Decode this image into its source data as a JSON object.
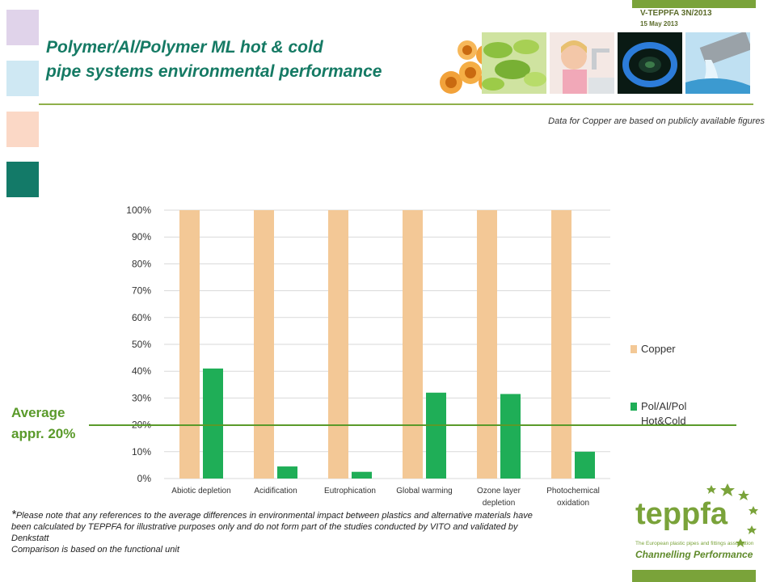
{
  "header": {
    "ref": "V-TEPPFA 3N/2013",
    "date": "15 May 2013",
    "title_line1": "Polymer/Al/Polymer ML hot & cold",
    "title_line2": "pipe systems  environmental performance"
  },
  "decor": {
    "squares": [
      "#e0d3ea",
      "#cfe8f3",
      "#fbd8c6",
      "#137a68"
    ],
    "photos": [
      "orange-pipes-photo",
      "green-leaves-photo",
      "child-at-tap-photo",
      "gas-flame-photo",
      "water-pipe-photo"
    ]
  },
  "note_top": "Data for Copper are based on publicly available figures",
  "average": {
    "line1": "Average",
    "line2": "appr. 20%",
    "value": 20
  },
  "chart_data": {
    "type": "bar",
    "categories": [
      "Abiotic depletion",
      "Acidification",
      "Eutrophication",
      "Global warming",
      "Ozone layer depletion",
      "Photochemical oxidation"
    ],
    "category_lines": [
      [
        "Abiotic depletion"
      ],
      [
        "Acidification"
      ],
      [
        "Eutrophication"
      ],
      [
        "Global warming"
      ],
      [
        "Ozone layer",
        "depletion"
      ],
      [
        "Photochemical",
        "oxidation"
      ]
    ],
    "series": [
      {
        "name": "Copper",
        "color": "#f3c896",
        "values": [
          100,
          100,
          100,
          100,
          100,
          100
        ]
      },
      {
        "name": "Pol/Al/Pol Hot&Cold",
        "color": "#1fae57",
        "values": [
          41,
          4.5,
          2.5,
          32,
          31.5,
          10
        ]
      }
    ],
    "legend": [
      {
        "lines": [
          "Copper"
        ],
        "color": "#f3c896"
      },
      {
        "lines": [
          "Pol/Al/Pol",
          "Hot&Cold"
        ],
        "color": "#1fae57"
      }
    ],
    "ylim": [
      0,
      100
    ],
    "yticks": [
      "0%",
      "10%",
      "20%",
      "30%",
      "40%",
      "50%",
      "60%",
      "70%",
      "80%",
      "90%",
      "100%"
    ],
    "grid": true,
    "legend_position": "right"
  },
  "footnote": {
    "star": "*",
    "text": "Please note that any references to the average differences in environmental impact between plastics and alternative materials have been calculated by TEPPFA for illustrative purposes only and do not form part of the studies conducted by VITO and validated by Denkstatt",
    "line2": "Comparison is based on the functional unit"
  },
  "logo": {
    "name": "teppfa",
    "subtitle": "The European plastic pipes and fittings association",
    "tagline": "Channelling Performance",
    "color": "#7aa33a"
  }
}
